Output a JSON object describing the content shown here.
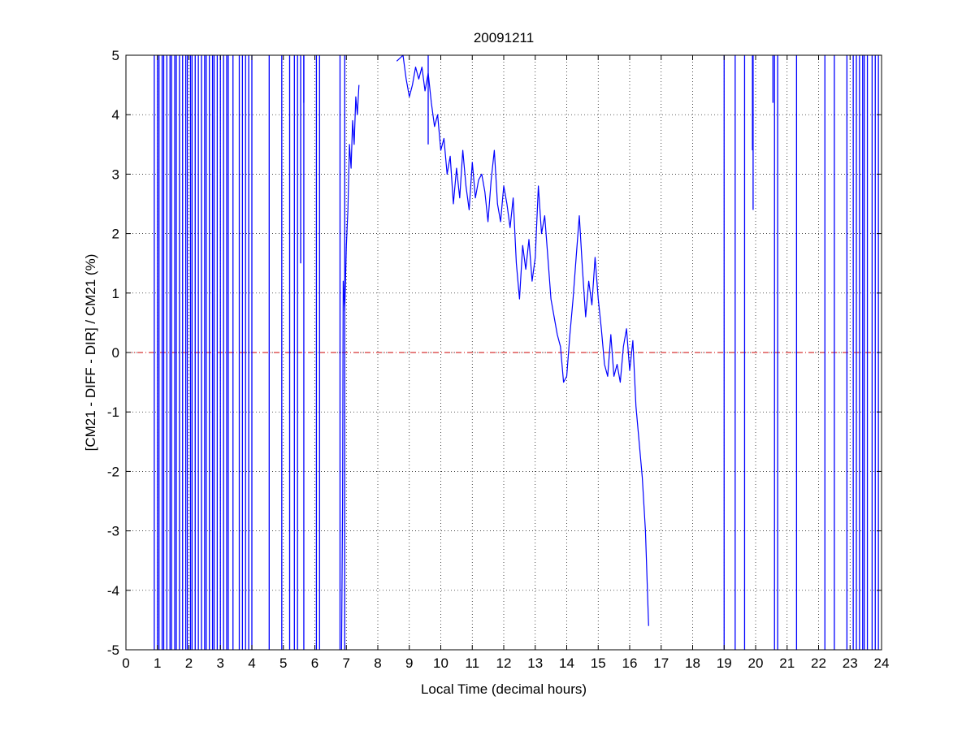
{
  "chart_data": {
    "type": "line",
    "title": "20091211",
    "xlabel": "Local Time (decimal hours)",
    "ylabel": "[CM21 - DIFF - DIR] / CM21 (%)",
    "xlim": [
      0,
      24
    ],
    "ylim": [
      -5,
      5
    ],
    "x_ticks": [
      "0",
      "1",
      "2",
      "3",
      "4",
      "5",
      "6",
      "7",
      "8",
      "9",
      "10",
      "11",
      "12",
      "13",
      "14",
      "15",
      "16",
      "17",
      "18",
      "19",
      "20",
      "21",
      "22",
      "23",
      "24"
    ],
    "y_ticks": [
      "-5",
      "-4",
      "-3",
      "-2",
      "-1",
      "0",
      "1",
      "2",
      "3",
      "4",
      "5"
    ],
    "grid": true,
    "colors": {
      "series": "#0000ff",
      "reference": "#cc0000",
      "grid": "#000000"
    },
    "reference_line": {
      "y": 0,
      "style": "dash-dot"
    },
    "series": [
      {
        "x": [
          8.6,
          8.8,
          8.9,
          9.0,
          9.1,
          9.2,
          9.3,
          9.4,
          9.5,
          9.6,
          9.7,
          9.8,
          9.9,
          10.0,
          10.1,
          10.2,
          10.3,
          10.4,
          10.5,
          10.6,
          10.7,
          10.8,
          10.9,
          11.0,
          11.1,
          11.2,
          11.3,
          11.4,
          11.5,
          11.6,
          11.7,
          11.8,
          11.9,
          12.0,
          12.1,
          12.2,
          12.3,
          12.4,
          12.5,
          12.6,
          12.7,
          12.8,
          12.9,
          13.0,
          13.1,
          13.2,
          13.3,
          13.4,
          13.5,
          13.6,
          13.7,
          13.8,
          13.9,
          14.0,
          14.1,
          14.2,
          14.3,
          14.4,
          14.5,
          14.6,
          14.7,
          14.8,
          14.9,
          15.0,
          15.1,
          15.2,
          15.3,
          15.4,
          15.5,
          15.6,
          15.7,
          15.8,
          15.9,
          16.0,
          16.1,
          16.2,
          16.3,
          16.4,
          16.5,
          16.6
        ],
        "y": [
          4.9,
          5.0,
          4.6,
          4.3,
          4.5,
          4.8,
          4.6,
          4.8,
          4.4,
          4.7,
          4.2,
          3.8,
          4.0,
          3.4,
          3.6,
          3.0,
          3.3,
          2.5,
          3.1,
          2.6,
          3.4,
          2.8,
          2.4,
          3.2,
          2.6,
          2.9,
          3.0,
          2.7,
          2.2,
          2.9,
          3.4,
          2.5,
          2.2,
          2.8,
          2.5,
          2.1,
          2.6,
          1.5,
          0.9,
          1.8,
          1.4,
          1.9,
          1.2,
          1.6,
          2.8,
          2.0,
          2.3,
          1.6,
          0.9,
          0.6,
          0.3,
          0.1,
          -0.5,
          -0.4,
          0.3,
          0.9,
          1.6,
          2.3,
          1.4,
          0.6,
          1.2,
          0.8,
          1.6,
          0.9,
          0.4,
          -0.2,
          -0.4,
          0.3,
          -0.4,
          -0.2,
          -0.5,
          0.1,
          0.4,
          -0.3,
          0.2,
          -0.9,
          -1.5,
          -2.1,
          -3.0,
          -4.6
        ]
      },
      {
        "x": [
          6.85,
          6.88,
          6.9,
          6.95,
          7.0,
          7.05,
          7.1,
          7.15,
          7.2,
          7.25,
          7.3,
          7.35,
          7.4
        ],
        "y": [
          -5.0,
          -2.6,
          1.2,
          0.7,
          1.8,
          2.4,
          3.5,
          3.1,
          3.9,
          3.5,
          4.3,
          4.0,
          4.5
        ]
      }
    ],
    "spikes_full_range_x": [
      0.9,
      1.0,
      1.05,
      1.15,
      1.2,
      1.3,
      1.4,
      1.45,
      1.55,
      1.6,
      1.7,
      1.8,
      1.9,
      1.95,
      2.05,
      2.1,
      2.2,
      2.3,
      2.4,
      2.5,
      2.55,
      2.65,
      2.75,
      2.8,
      2.9,
      3.0,
      3.1,
      3.2,
      3.25,
      3.4,
      3.6,
      3.7,
      3.8,
      3.9,
      4.0,
      4.55,
      4.95,
      5.2,
      5.35,
      5.45,
      5.65,
      6.05,
      6.15,
      6.8,
      6.95,
      19.0,
      19.35,
      19.65,
      20.6,
      20.7,
      21.3,
      22.2,
      22.5,
      22.9,
      23.1,
      23.2,
      23.3,
      23.4,
      23.45,
      23.55,
      23.7,
      23.8,
      23.9
    ],
    "spikes_from_top": [
      {
        "x": 5.55,
        "y": 1.5
      },
      {
        "x": 5.65,
        "y": 4.2
      },
      {
        "x": 20.55,
        "y": 4.2
      },
      {
        "x": 19.9,
        "y": 3.4
      },
      {
        "x": 19.92,
        "y": 2.4
      },
      {
        "x": 9.6,
        "y": 3.5
      }
    ]
  }
}
